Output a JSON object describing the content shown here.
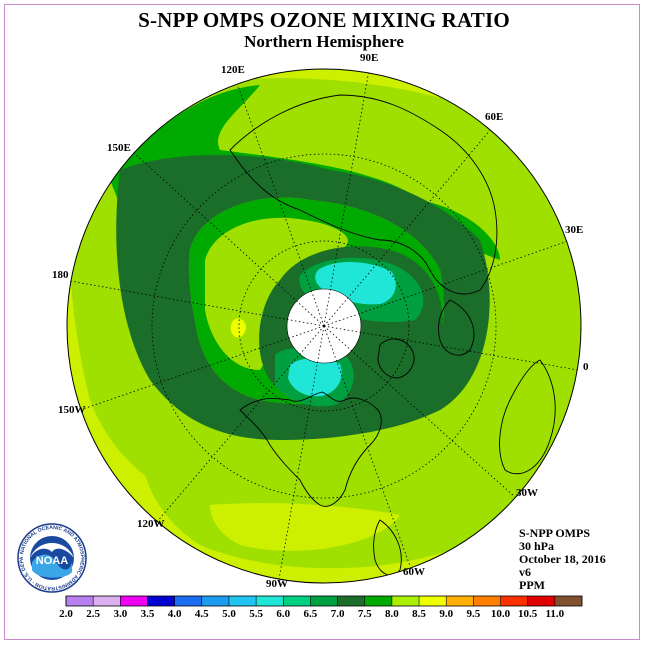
{
  "title": "S-NPP OMPS OZONE MIXING RATIO",
  "subtitle": "Northern Hemisphere",
  "info": {
    "instrument": "S-NPP OMPS",
    "level": "30 hPa",
    "date": "October 18, 2016",
    "version": "v6",
    "units": "PPM"
  },
  "longitude_labels": [
    "90E",
    "60E",
    "30E",
    "0",
    "30W",
    "60W",
    "90W",
    "120W",
    "150W",
    "180",
    "150E",
    "120E"
  ],
  "logo": {
    "text": "NOAA",
    "ring_text": "NATIONAL OCEANIC AND ATMOSPHERIC ADMINISTRATION · U.S. DEPARTMENT OF COMMERCE"
  },
  "colorbar": {
    "ticks": [
      "2.0",
      "2.5",
      "3.0",
      "3.5",
      "4.0",
      "4.5",
      "5.0",
      "5.5",
      "6.0",
      "6.5",
      "7.0",
      "7.5",
      "8.0",
      "8.5",
      "9.0",
      "9.5",
      "10.0",
      "10.5",
      "11.0"
    ],
    "colors": [
      "#b87fee",
      "#dcb0f0",
      "#f000f0",
      "#0000d0",
      "#1c6ef0",
      "#1c9cf0",
      "#20c4f0",
      "#20e6d8",
      "#00d080",
      "#00a040",
      "#1a6e2a",
      "#00aa00",
      "#aaee00",
      "#eeff00",
      "#ffb000",
      "#ff8000",
      "#ff3000",
      "#e00000",
      "#805030"
    ]
  },
  "colors": {
    "ppm_6_0_6_5": "#00a040",
    "ppm_6_5_7_0": "#1a6e2a",
    "ppm_7_0_7_5": "#00aa00",
    "ppm_7_5_8_0": "#9fe000",
    "ppm_8_0_8_5": "#ccf000",
    "ppm_8_5_9_0": "#eeff00",
    "ppm_5_5_6_0": "#20e6d8",
    "polar_night": "#ffffff",
    "frame": "#c98bc9"
  },
  "chart_data": {
    "type": "heatmap",
    "projection": "north polar stereographic",
    "variable": "ozone mixing ratio",
    "units": "PPM",
    "pressure_level": "30 hPa",
    "date": "October 18, 2016",
    "color_levels": [
      2.0,
      2.5,
      3.0,
      3.5,
      4.0,
      4.5,
      5.0,
      5.5,
      6.0,
      6.5,
      7.0,
      7.5,
      8.0,
      8.5,
      9.0,
      9.5,
      10.0,
      10.5,
      11.0
    ],
    "observed_range": [
      5.5,
      9.0
    ]
  }
}
